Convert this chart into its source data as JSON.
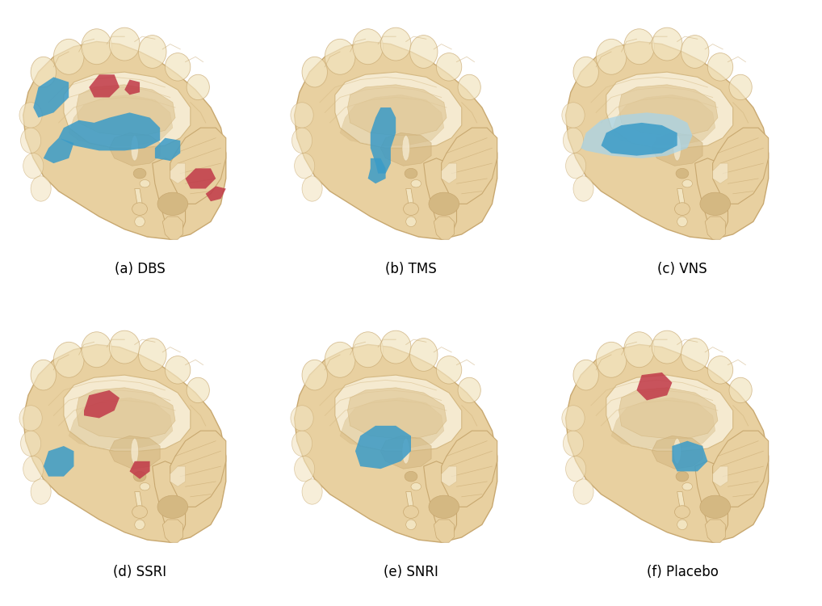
{
  "panels": [
    {
      "label": "(a) DBS",
      "row": 0,
      "col": 0,
      "id": 0
    },
    {
      "label": "(b) TMS",
      "row": 0,
      "col": 1,
      "id": 1
    },
    {
      "label": "(c) VNS",
      "row": 0,
      "col": 2,
      "id": 2
    },
    {
      "label": "(d) SSRI",
      "row": 1,
      "col": 0,
      "id": 3
    },
    {
      "label": "(e) SNRI",
      "row": 1,
      "col": 1,
      "id": 4
    },
    {
      "label": "(f) Placebo",
      "row": 1,
      "col": 2,
      "id": 5
    }
  ],
  "bg_color": "#FFFFFF",
  "blue_color": "#3A9BC8",
  "light_blue_color": "#A8D4E8",
  "red_color": "#C03848",
  "label_fontsize": 12,
  "figsize": [
    10.18,
    7.5
  ],
  "dpi": 100,
  "brain_tan": "#E8D0A0",
  "brain_light": "#F2E4C0",
  "brain_dark": "#C8A870",
  "brain_mid": "#D4B882",
  "brain_white": "#F5EAD0",
  "brain_inner": "#E0C898"
}
